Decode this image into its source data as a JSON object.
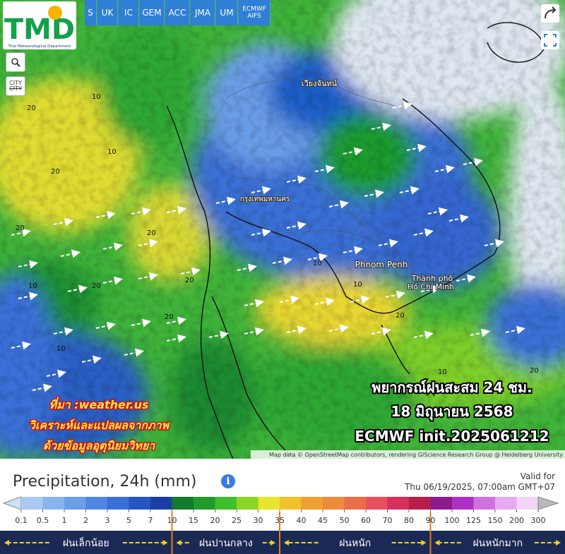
{
  "logo": {
    "title": "TMD",
    "subtitle": "Thai Meteorological Department"
  },
  "tabs": [
    "S",
    "UK",
    "IC",
    "GEM",
    "ACC",
    "JMA",
    "UM",
    "ECMWF AIFS"
  ],
  "city_button": "CITY",
  "map": {
    "places": [
      "เวียงจันทน์",
      "กรุงเทพมหานคร",
      "Phnom Penh",
      "Thành phố",
      "Hồ Chí Minh"
    ],
    "contour_labels": [
      "20",
      "10",
      "20",
      "10",
      "20",
      "20",
      "10",
      "20",
      "10",
      "20",
      "20",
      "10",
      "10",
      "20",
      "10",
      "20"
    ],
    "overlay": [
      "พยากรณ์ฝนสะสม 24 ชม.",
      "18 มิถุนายน 2568",
      "ECMWF init.2025061212"
    ],
    "source": [
      "ที่มา :weather.us",
      "วิเคราะห์และแปลผลจากภาพ",
      "ด้วยข้อมูลอุตุนิยมวิทยา"
    ],
    "attribution": "Map data © OpenStreetMap contributors, rendering GIScience Research Group @ Heidelberg University"
  },
  "legend": {
    "title": "Precipitation, 24h (mm)",
    "valid_label": "Valid for",
    "valid_time": "Thu 06/19/2025, 07:00am GMT+07",
    "ticks": [
      0.1,
      0.5,
      1,
      2,
      3,
      5,
      7,
      10,
      15,
      20,
      25,
      30,
      35,
      40,
      45,
      50,
      60,
      70,
      80,
      90,
      100,
      125,
      150,
      200,
      300
    ],
    "colors": [
      "#a9c9f2",
      "#8ab4ee",
      "#6b9de8",
      "#4f86e2",
      "#3a6fd8",
      "#2855c4",
      "#1b3ea6",
      "#137a2c",
      "#1f9b2e",
      "#3fbf2a",
      "#8bd624",
      "#e6e62c",
      "#f2c22a",
      "#f0a030",
      "#ee8a3a",
      "#ec6e46",
      "#e85060",
      "#d8305a",
      "#b81f48",
      "#8c1a8c",
      "#b02fc8",
      "#d070e0",
      "#e6aaf0",
      "#f2d6f6"
    ],
    "categories": [
      "ฝนเล็กน้อย",
      "ฝนปานกลาง",
      "ฝนหนัก",
      "ฝนหนักมาก"
    ]
  }
}
